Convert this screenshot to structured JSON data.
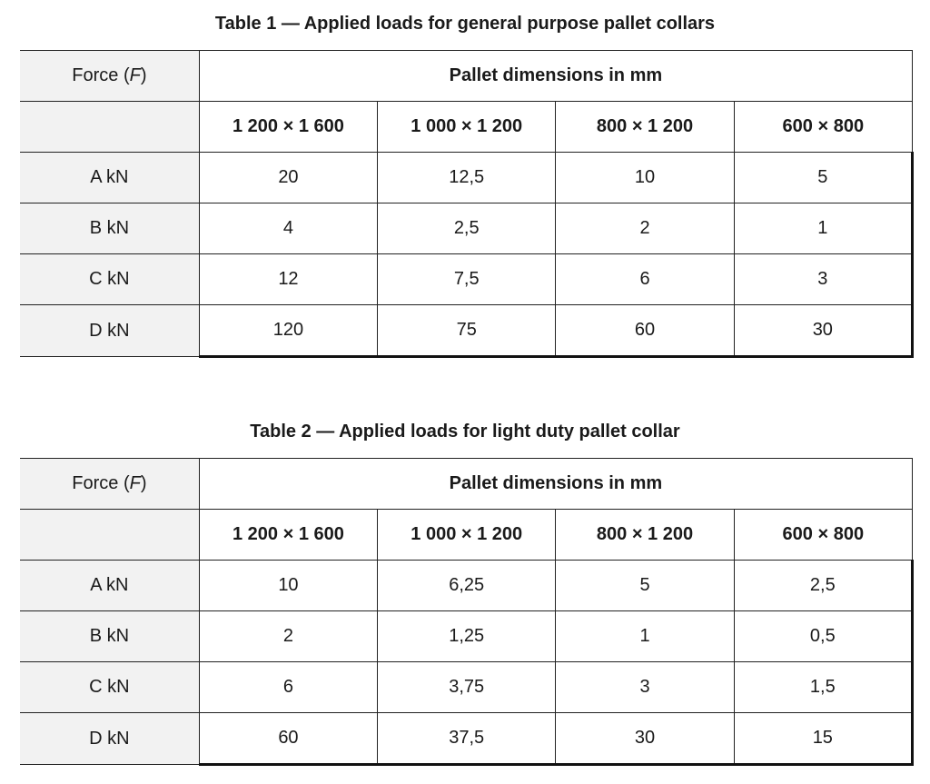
{
  "tables": [
    {
      "title": "Table 1 — Applied loads for general purpose pallet collars",
      "force_label": "Force (",
      "force_symbol": "F",
      "force_close": ")",
      "dimensions_header": "Pallet dimensions in mm",
      "columns": [
        "1 200 × 1 600",
        "1 000 × 1 200",
        "800 × 1 200",
        "600 × 800"
      ],
      "rows": [
        {
          "label": "A kN",
          "values": [
            "20",
            "12,5",
            "10",
            "5"
          ]
        },
        {
          "label": "B kN",
          "values": [
            "4",
            "2,5",
            "2",
            "1"
          ]
        },
        {
          "label": "C kN",
          "values": [
            "12",
            "7,5",
            "6",
            "3"
          ]
        },
        {
          "label": "D kN",
          "values": [
            "120",
            "75",
            "60",
            "30"
          ]
        }
      ]
    },
    {
      "title": "Table 2 — Applied loads for light duty pallet collar",
      "force_label": "Force (",
      "force_symbol": "F",
      "force_close": ")",
      "dimensions_header": "Pallet dimensions in mm",
      "columns": [
        "1 200 × 1 600",
        "1 000 × 1 200",
        "800 × 1 200",
        "600 × 800"
      ],
      "rows": [
        {
          "label": "A kN",
          "values": [
            "10",
            "6,25",
            "5",
            "2,5"
          ]
        },
        {
          "label": "B kN",
          "values": [
            "2",
            "1,25",
            "1",
            "0,5"
          ]
        },
        {
          "label": "C kN",
          "values": [
            "6",
            "3,75",
            "3",
            "1,5"
          ]
        },
        {
          "label": "D kN",
          "values": [
            "60",
            "37,5",
            "30",
            "15"
          ]
        }
      ]
    }
  ]
}
